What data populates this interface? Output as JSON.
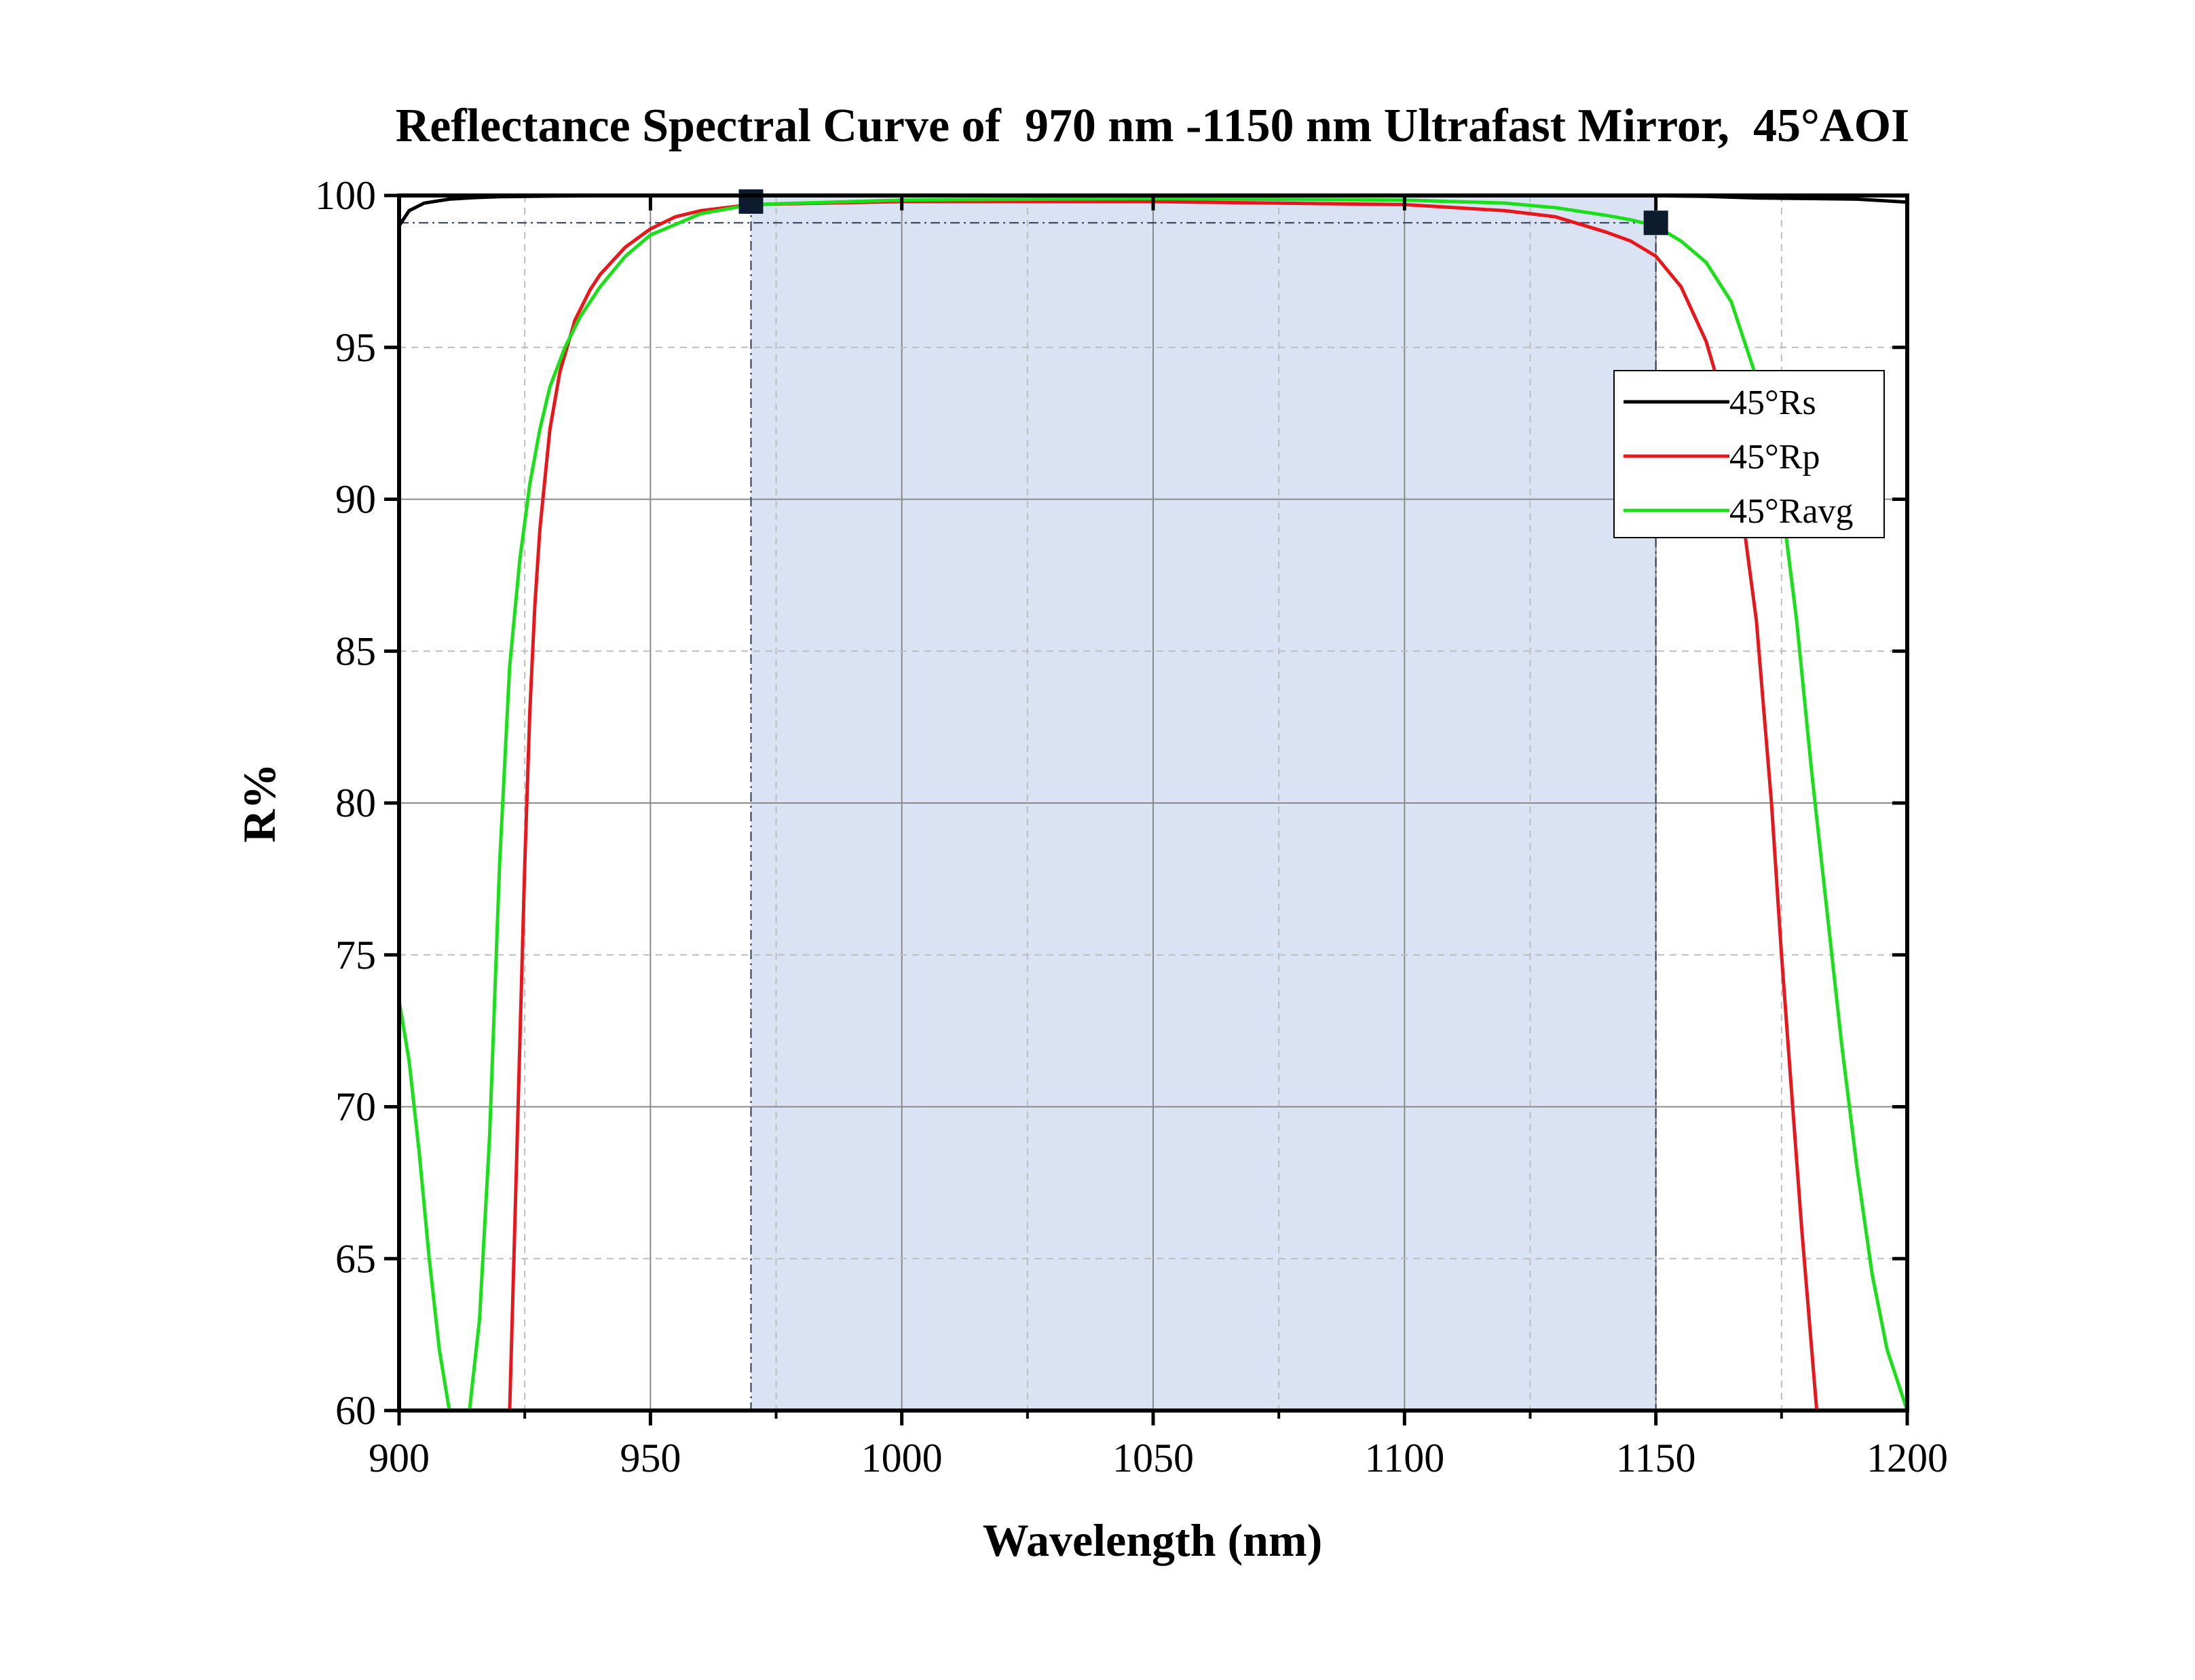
{
  "chart_data": {
    "type": "line",
    "title": "Reflectance Spectral Curve of  970 nm -1150 nm Ultrafast Mirror,  45°AOI",
    "xlabel": "Wavelength (nm)",
    "ylabel": "R%",
    "xlim": [
      900,
      1200
    ],
    "ylim": [
      60,
      100
    ],
    "xticks": [
      "900",
      "950",
      "1000",
      "1050",
      "1100",
      "1150",
      "1200"
    ],
    "yticks": [
      "60",
      "65",
      "70",
      "75",
      "80",
      "85",
      "90",
      "95",
      "100"
    ],
    "grid": true,
    "legend_position": "top-right",
    "highlight_band": {
      "x": [
        970,
        1150
      ],
      "color": "#dae3f3"
    },
    "markers": [
      {
        "x": 970,
        "y": 99.8
      },
      {
        "x": 1150,
        "y": 99.1
      }
    ],
    "series": [
      {
        "name": "45°Rs",
        "color": "#000000",
        "x": [
          900,
          902,
          905,
          910,
          915,
          920,
          930,
          940,
          950,
          1000,
          1050,
          1100,
          1150,
          1160,
          1170,
          1180,
          1190,
          1200
        ],
        "y": [
          99.0,
          99.5,
          99.75,
          99.88,
          99.93,
          99.96,
          99.98,
          99.99,
          99.99,
          99.99,
          99.99,
          99.99,
          99.99,
          99.97,
          99.92,
          99.9,
          99.88,
          99.78
        ]
      },
      {
        "name": "45°Rp",
        "color": "#e8171c",
        "x": [
          922,
          923,
          924,
          925,
          926,
          927,
          928,
          930,
          932,
          935,
          938,
          940,
          945,
          950,
          955,
          960,
          970,
          1000,
          1050,
          1100,
          1120,
          1130,
          1140,
          1145,
          1150,
          1155,
          1160,
          1163,
          1166,
          1170,
          1173,
          1175,
          1177,
          1179,
          1181,
          1182
        ],
        "y": [
          60,
          66,
          72,
          78,
          83,
          86.5,
          89,
          92.3,
          94.2,
          95.9,
          96.9,
          97.4,
          98.3,
          98.9,
          99.3,
          99.5,
          99.7,
          99.8,
          99.8,
          99.7,
          99.5,
          99.3,
          98.8,
          98.5,
          98.0,
          97.0,
          95.2,
          93.5,
          91.0,
          86.0,
          80.0,
          75.0,
          70.5,
          66.0,
          62.0,
          60
        ]
      },
      {
        "name": "45°Ravg",
        "color": "#19e019",
        "x": [
          900,
          902,
          904,
          906,
          908,
          910,
          912,
          914,
          916,
          918,
          920,
          922,
          924,
          926,
          928,
          930,
          933,
          936,
          940,
          945,
          950,
          960,
          970,
          1000,
          1050,
          1100,
          1120,
          1130,
          1140,
          1145,
          1150,
          1155,
          1160,
          1165,
          1170,
          1173,
          1175,
          1178,
          1181,
          1184,
          1187,
          1190,
          1193,
          1196,
          1198,
          1200
        ],
        "y": [
          73.5,
          71.5,
          68.5,
          65.0,
          62.0,
          60,
          59.5,
          60,
          63,
          69,
          78,
          84.5,
          88.0,
          90.5,
          92.3,
          93.7,
          95.0,
          96.0,
          97.0,
          98.0,
          98.7,
          99.4,
          99.7,
          99.85,
          99.9,
          99.85,
          99.75,
          99.6,
          99.35,
          99.2,
          99.0,
          98.5,
          97.8,
          96.5,
          94.0,
          92.0,
          90.0,
          86.0,
          81.0,
          76.5,
          72.0,
          68.0,
          64.5,
          62.0,
          61.0,
          60
        ]
      }
    ]
  }
}
